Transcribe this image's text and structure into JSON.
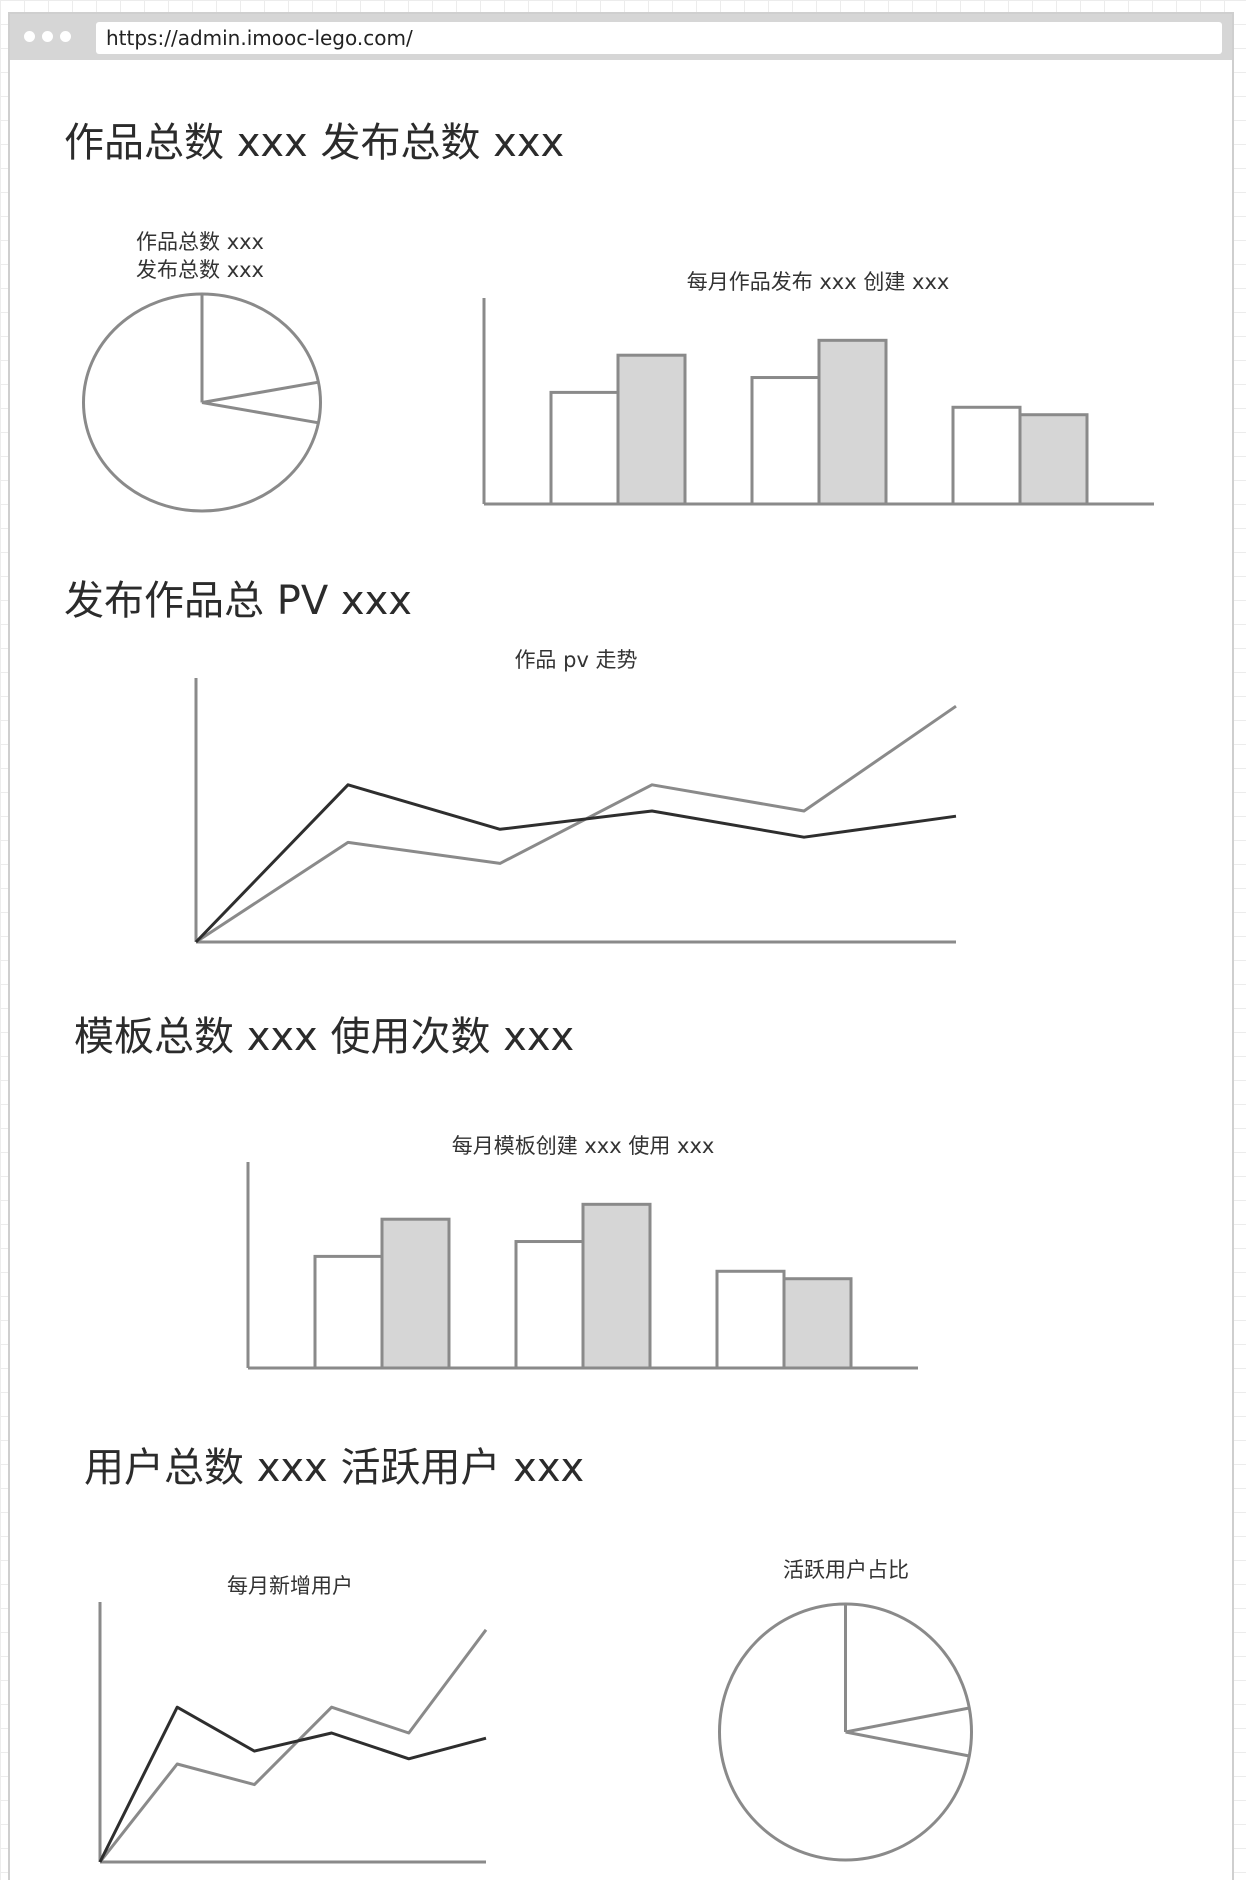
{
  "browser": {
    "url": "https://admin.imooc-lego.com/"
  },
  "sections": {
    "works": {
      "heading": "作品总数 xxx 发布总数 xxx",
      "pie": {
        "label_line1": "作品总数 xxx",
        "label_line2": "发布总数 xxx"
      },
      "bar_title": "每月作品发布 xxx 创建 xxx"
    },
    "pv": {
      "heading": "发布作品总 PV xxx",
      "line_title": "作品 pv 走势"
    },
    "templates": {
      "heading": "模板总数 xxx 使用次数 xxx",
      "bar_title": "每月模板创建 xxx 使用 xxx"
    },
    "users": {
      "heading": "用户总数 xxx 活跃用户 xxx",
      "line_title": "每月新增用户",
      "pie_title": "活跃用户占比"
    }
  },
  "colors": {
    "stroke": "#8a8a8a",
    "dark_line": "#2e2e2e",
    "bar_fill": "#d6d6d6",
    "bar_empty": "#ffffff"
  },
  "chart_data": [
    {
      "type": "pie",
      "values": [
        0.22,
        0.06,
        0.72
      ],
      "series_note": ""
    },
    {
      "type": "bar",
      "categories": [
        "",
        "",
        ""
      ],
      "series": [
        {
          "values": [
            60,
            68,
            52
          ]
        },
        {
          "values": [
            80,
            88,
            48
          ]
        }
      ],
      "ylim": [
        0,
        100
      ]
    },
    {
      "type": "line",
      "x": [
        0,
        1,
        2,
        3,
        4,
        5
      ],
      "series": [
        {
          "color": "dark",
          "values": [
            0,
            60,
            43,
            50,
            40,
            48
          ]
        },
        {
          "color": "light",
          "values": [
            0,
            38,
            30,
            60,
            50,
            90
          ]
        }
      ],
      "ylim": [
        0,
        100
      ]
    },
    {
      "type": "bar",
      "categories": [
        "",
        "",
        ""
      ],
      "series": [
        {
          "values": [
            60,
            68,
            52
          ]
        },
        {
          "values": [
            80,
            88,
            48
          ]
        }
      ],
      "ylim": [
        0,
        100
      ]
    },
    {
      "type": "line",
      "x": [
        0,
        1,
        2,
        3,
        4,
        5
      ],
      "series": [
        {
          "color": "dark",
          "values": [
            0,
            60,
            43,
            50,
            40,
            48
          ]
        },
        {
          "color": "light",
          "values": [
            0,
            38,
            30,
            60,
            50,
            90
          ]
        }
      ],
      "ylim": [
        0,
        100
      ]
    },
    {
      "type": "pie",
      "values": [
        0.22,
        0.06,
        0.72
      ]
    }
  ]
}
